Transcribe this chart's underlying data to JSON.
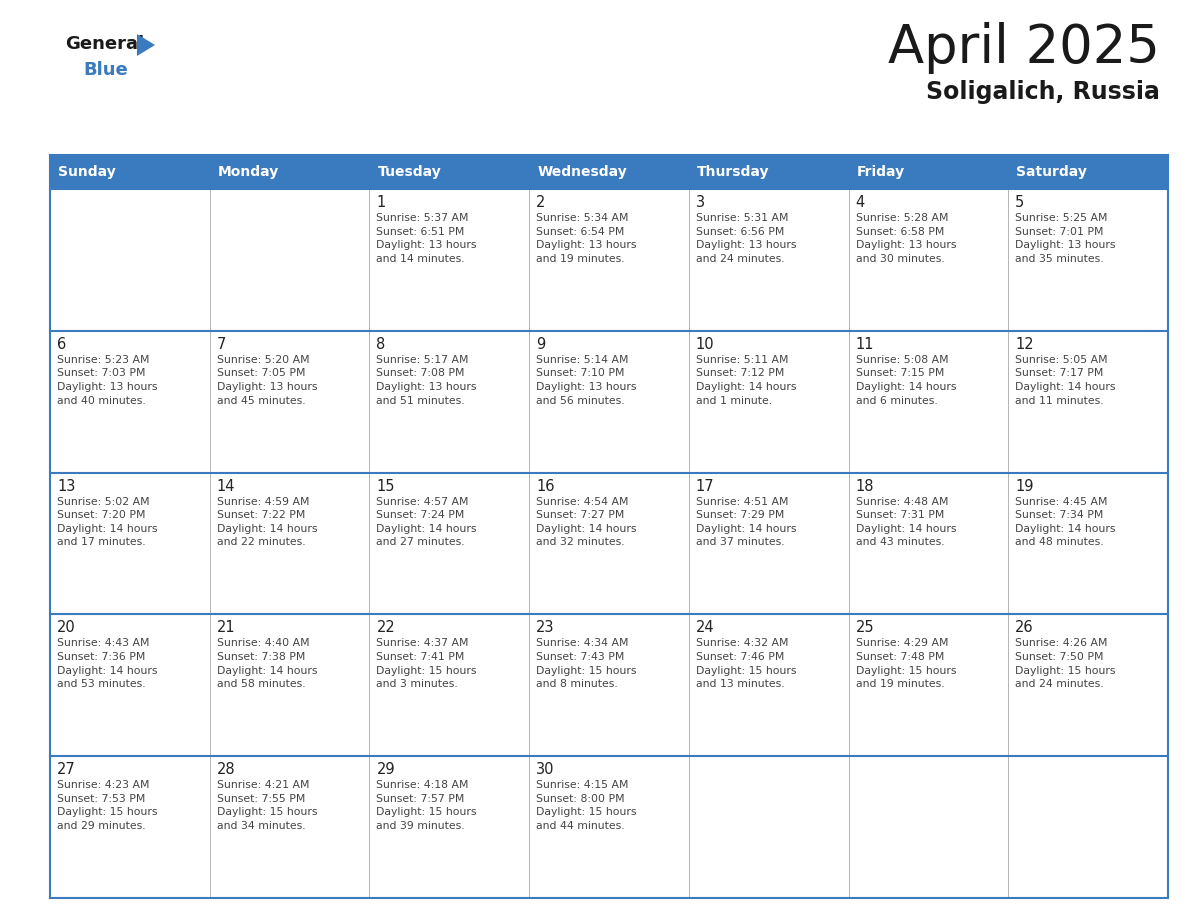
{
  "title": "April 2025",
  "subtitle": "Soligalich, Russia",
  "header_color": "#3a7abf",
  "header_text_color": "#ffffff",
  "border_color": "#3a7abf",
  "cell_border_color": "#3a7abf",
  "text_color": "#333333",
  "day_names": [
    "Sunday",
    "Monday",
    "Tuesday",
    "Wednesday",
    "Thursday",
    "Friday",
    "Saturday"
  ],
  "logo_general_color": "#1a1a1a",
  "logo_blue_color": "#3a7abf",
  "logo_triangle_color": "#3a7abf",
  "title_color": "#1a1a1a",
  "subtitle_color": "#1a1a1a",
  "weeks": [
    [
      {
        "day": "",
        "info": ""
      },
      {
        "day": "",
        "info": ""
      },
      {
        "day": "1",
        "info": "Sunrise: 5:37 AM\nSunset: 6:51 PM\nDaylight: 13 hours\nand 14 minutes."
      },
      {
        "day": "2",
        "info": "Sunrise: 5:34 AM\nSunset: 6:54 PM\nDaylight: 13 hours\nand 19 minutes."
      },
      {
        "day": "3",
        "info": "Sunrise: 5:31 AM\nSunset: 6:56 PM\nDaylight: 13 hours\nand 24 minutes."
      },
      {
        "day": "4",
        "info": "Sunrise: 5:28 AM\nSunset: 6:58 PM\nDaylight: 13 hours\nand 30 minutes."
      },
      {
        "day": "5",
        "info": "Sunrise: 5:25 AM\nSunset: 7:01 PM\nDaylight: 13 hours\nand 35 minutes."
      }
    ],
    [
      {
        "day": "6",
        "info": "Sunrise: 5:23 AM\nSunset: 7:03 PM\nDaylight: 13 hours\nand 40 minutes."
      },
      {
        "day": "7",
        "info": "Sunrise: 5:20 AM\nSunset: 7:05 PM\nDaylight: 13 hours\nand 45 minutes."
      },
      {
        "day": "8",
        "info": "Sunrise: 5:17 AM\nSunset: 7:08 PM\nDaylight: 13 hours\nand 51 minutes."
      },
      {
        "day": "9",
        "info": "Sunrise: 5:14 AM\nSunset: 7:10 PM\nDaylight: 13 hours\nand 56 minutes."
      },
      {
        "day": "10",
        "info": "Sunrise: 5:11 AM\nSunset: 7:12 PM\nDaylight: 14 hours\nand 1 minute."
      },
      {
        "day": "11",
        "info": "Sunrise: 5:08 AM\nSunset: 7:15 PM\nDaylight: 14 hours\nand 6 minutes."
      },
      {
        "day": "12",
        "info": "Sunrise: 5:05 AM\nSunset: 7:17 PM\nDaylight: 14 hours\nand 11 minutes."
      }
    ],
    [
      {
        "day": "13",
        "info": "Sunrise: 5:02 AM\nSunset: 7:20 PM\nDaylight: 14 hours\nand 17 minutes."
      },
      {
        "day": "14",
        "info": "Sunrise: 4:59 AM\nSunset: 7:22 PM\nDaylight: 14 hours\nand 22 minutes."
      },
      {
        "day": "15",
        "info": "Sunrise: 4:57 AM\nSunset: 7:24 PM\nDaylight: 14 hours\nand 27 minutes."
      },
      {
        "day": "16",
        "info": "Sunrise: 4:54 AM\nSunset: 7:27 PM\nDaylight: 14 hours\nand 32 minutes."
      },
      {
        "day": "17",
        "info": "Sunrise: 4:51 AM\nSunset: 7:29 PM\nDaylight: 14 hours\nand 37 minutes."
      },
      {
        "day": "18",
        "info": "Sunrise: 4:48 AM\nSunset: 7:31 PM\nDaylight: 14 hours\nand 43 minutes."
      },
      {
        "day": "19",
        "info": "Sunrise: 4:45 AM\nSunset: 7:34 PM\nDaylight: 14 hours\nand 48 minutes."
      }
    ],
    [
      {
        "day": "20",
        "info": "Sunrise: 4:43 AM\nSunset: 7:36 PM\nDaylight: 14 hours\nand 53 minutes."
      },
      {
        "day": "21",
        "info": "Sunrise: 4:40 AM\nSunset: 7:38 PM\nDaylight: 14 hours\nand 58 minutes."
      },
      {
        "day": "22",
        "info": "Sunrise: 4:37 AM\nSunset: 7:41 PM\nDaylight: 15 hours\nand 3 minutes."
      },
      {
        "day": "23",
        "info": "Sunrise: 4:34 AM\nSunset: 7:43 PM\nDaylight: 15 hours\nand 8 minutes."
      },
      {
        "day": "24",
        "info": "Sunrise: 4:32 AM\nSunset: 7:46 PM\nDaylight: 15 hours\nand 13 minutes."
      },
      {
        "day": "25",
        "info": "Sunrise: 4:29 AM\nSunset: 7:48 PM\nDaylight: 15 hours\nand 19 minutes."
      },
      {
        "day": "26",
        "info": "Sunrise: 4:26 AM\nSunset: 7:50 PM\nDaylight: 15 hours\nand 24 minutes."
      }
    ],
    [
      {
        "day": "27",
        "info": "Sunrise: 4:23 AM\nSunset: 7:53 PM\nDaylight: 15 hours\nand 29 minutes."
      },
      {
        "day": "28",
        "info": "Sunrise: 4:21 AM\nSunset: 7:55 PM\nDaylight: 15 hours\nand 34 minutes."
      },
      {
        "day": "29",
        "info": "Sunrise: 4:18 AM\nSunset: 7:57 PM\nDaylight: 15 hours\nand 39 minutes."
      },
      {
        "day": "30",
        "info": "Sunrise: 4:15 AM\nSunset: 8:00 PM\nDaylight: 15 hours\nand 44 minutes."
      },
      {
        "day": "",
        "info": ""
      },
      {
        "day": "",
        "info": ""
      },
      {
        "day": "",
        "info": ""
      }
    ]
  ]
}
